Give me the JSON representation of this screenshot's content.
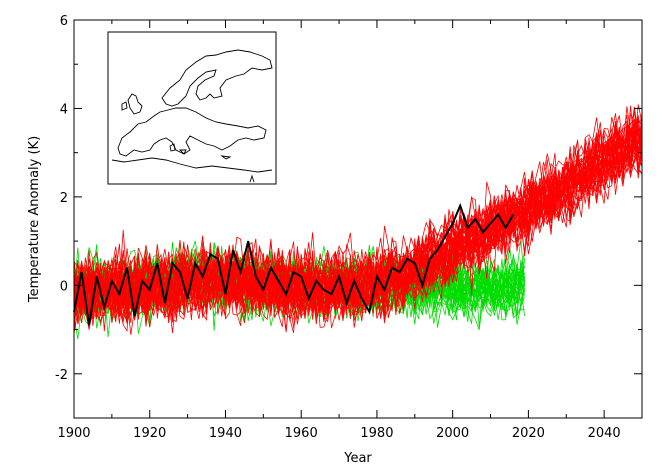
{
  "chart_data": {
    "type": "line",
    "title": "",
    "xlabel": "Year",
    "ylabel": "Temperature Anomaly (K)",
    "xlim": [
      1900,
      2050
    ],
    "ylim": [
      -3,
      6
    ],
    "x_ticks": [
      1900,
      1920,
      1940,
      1960,
      1980,
      2000,
      2020,
      2040
    ],
    "y_ticks": [
      -2,
      0,
      2,
      4,
      6
    ],
    "grid": false,
    "legend": "none",
    "inset": "map of Europe outline (top-left)",
    "colors": {
      "observations": "#000000",
      "model_ensemble_historical_rcp": "#ff0000",
      "model_ensemble_other": "#00dd00"
    },
    "series": [
      {
        "color": "#000000",
        "role": "observations",
        "x": [
          1900,
          1902,
          1904,
          1906,
          1908,
          1910,
          1912,
          1914,
          1916,
          1918,
          1920,
          1922,
          1924,
          1926,
          1928,
          1930,
          1932,
          1934,
          1936,
          1938,
          1940,
          1942,
          1944,
          1946,
          1948,
          1950,
          1952,
          1954,
          1956,
          1958,
          1960,
          1962,
          1964,
          1966,
          1968,
          1970,
          1972,
          1974,
          1976,
          1978,
          1980,
          1982,
          1984,
          1986,
          1988,
          1990,
          1992,
          1994,
          1996,
          1998,
          2000,
          2002,
          2004,
          2006,
          2008,
          2010,
          2012,
          2014,
          2016
        ],
        "values": [
          -0.6,
          0.3,
          -0.9,
          0.2,
          -0.5,
          0.1,
          -0.2,
          0.4,
          -0.7,
          0.1,
          -0.1,
          0.5,
          -0.4,
          0.5,
          0.3,
          -0.3,
          0.5,
          0.2,
          0.7,
          0.6,
          -0.2,
          0.8,
          0.3,
          1.0,
          0.2,
          -0.1,
          0.4,
          0.1,
          -0.2,
          0.3,
          0.2,
          -0.3,
          0.1,
          -0.1,
          -0.2,
          0.2,
          -0.4,
          0.1,
          -0.3,
          -0.6,
          0.2,
          -0.1,
          0.4,
          0.3,
          0.6,
          0.5,
          0.0,
          0.6,
          0.8,
          1.1,
          1.4,
          1.8,
          1.3,
          1.5,
          1.2,
          1.4,
          1.6,
          1.3,
          1.6
        ]
      },
      {
        "color": "#ff0000",
        "role": "model ensemble mean (red)",
        "x": [
          1900,
          1910,
          1920,
          1930,
          1940,
          1950,
          1960,
          1970,
          1980,
          1990,
          2000,
          2010,
          2020,
          2030,
          2040,
          2050
        ],
        "values": [
          -0.1,
          0.0,
          0.0,
          0.1,
          0.2,
          0.1,
          0.0,
          0.0,
          0.1,
          0.4,
          0.9,
          1.3,
          1.8,
          2.3,
          2.9,
          3.3
        ],
        "spread": 1.0,
        "members": 40
      },
      {
        "color": "#00dd00",
        "role": "model ensemble (green)",
        "x": [
          1900,
          1910,
          1920,
          1930,
          1940,
          1950,
          1960,
          1970,
          1980,
          1990,
          2000,
          2010,
          2019
        ],
        "values": [
          -0.2,
          -0.1,
          0.0,
          0.1,
          0.1,
          0.0,
          0.0,
          0.0,
          0.0,
          0.0,
          -0.1,
          -0.1,
          0.0
        ],
        "spread": 0.9,
        "members": 30
      }
    ]
  }
}
